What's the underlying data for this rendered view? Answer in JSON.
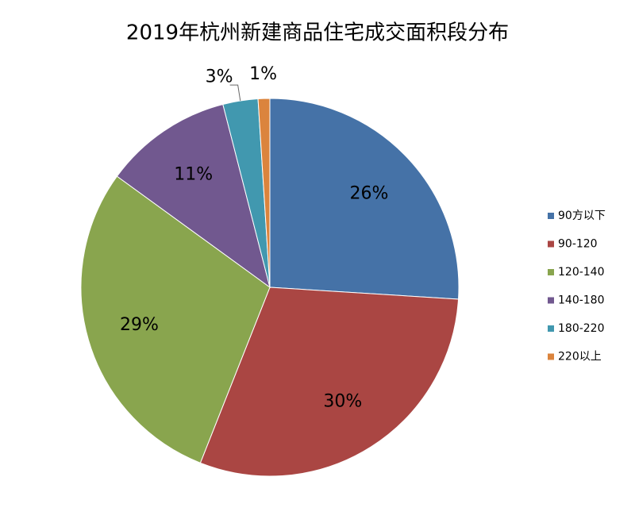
{
  "chart_data": {
    "type": "pie",
    "title": "2019年杭州新建商品住宅成交面积段分布",
    "categories": [
      "90方以下",
      "90-120",
      "120-140",
      "140-180",
      "180-220",
      "220以上"
    ],
    "values": [
      26,
      30,
      29,
      11,
      3,
      1
    ],
    "value_labels": [
      "26%",
      "30%",
      "29%",
      "11%",
      "3%",
      "1%"
    ],
    "colors": [
      "#4572a7",
      "#aa4643",
      "#89a54e",
      "#71588f",
      "#4198af",
      "#db843d"
    ],
    "legend": "right"
  }
}
